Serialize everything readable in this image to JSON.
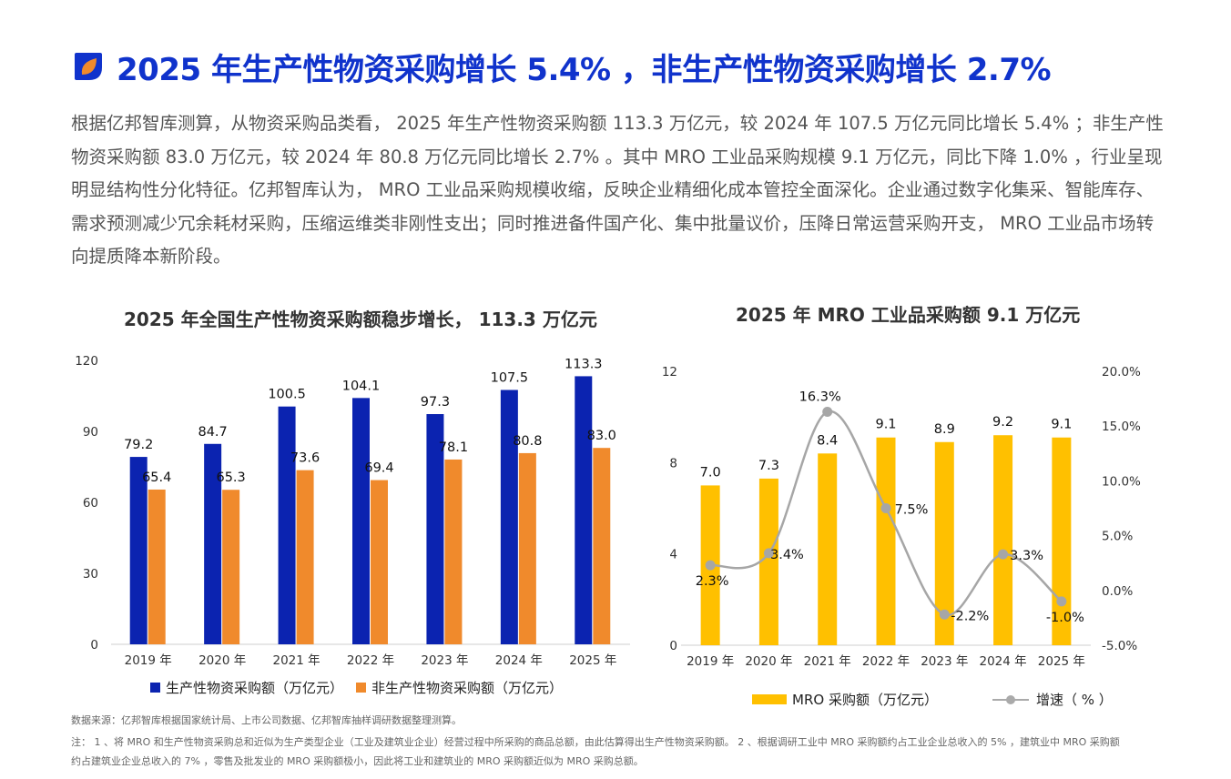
{
  "page": {
    "title": "2025 年生产性物资采购增长 5.4% ，非生产性物资采购增长 2.7%",
    "body": "根据亿邦智库测算，从物资采购品类看， 2025 年生产性物资采购额 113.3 万亿元，较 2024 年 107.5 万亿元同比增长 5.4% ；非生产性物资采购额 83.0 万亿元，较 2024 年 80.8 万亿元同比增长 2.7% 。其中 MRO 工业品采购规模 9.1 万亿元，同比下降 1.0% ，行业呈现明显结构性分化特征。亿邦智库认为， MRO 工业品采购规模收缩，反映企业精细化成本管控全面深化。企业通过数字化集采、智能库存、需求预测减少冗余耗材采购，压缩运维类非刚性支出；同时推进备件国产化、集中批量议价，压降日常运营采购开支， MRO 工业品市场转向提质降本新阶段。",
    "source": "数据来源：亿邦智库根据国家统计局、上市公司数据、亿邦智库抽样调研数据整理测算。",
    "note": "注： 1 、将 MRO 和生产性物资采购总和近似为生产类型企业（工业及建筑业企业）经营过程中所采购的商品总额，由此估算得出生产性物资采购额。 2 、根据调研工业中 MRO 采购额约占工业企业总收入的 5% ，建筑业中 MRO 采购额约占建筑业企业总收入的 7% ，零售及批发业的 MRO 采购额极小，因此将工业和建筑业的 MRO 采购额近似为 MRO 采购总额。",
    "colors": {
      "accent": "#1033cc",
      "logo_orange": "#f08a2c"
    },
    "logo_icon": "leaf-logo-icon"
  },
  "chart_data": [
    {
      "type": "bar",
      "title": "2025 年全国生产性物资采购额稳步增长， 113.3 万亿元",
      "categories": [
        "2019 年",
        "2020 年",
        "2021 年",
        "2022 年",
        "2023 年",
        "2024 年",
        "2025 年"
      ],
      "series": [
        {
          "name": "生产性物资采购额（万亿元）",
          "color": "#0b23b0",
          "values": [
            79.2,
            84.7,
            100.5,
            104.1,
            97.3,
            107.5,
            113.3
          ],
          "labels": [
            "79.2",
            "84.7",
            "100.5",
            "104.1",
            "97.3",
            "107.5",
            "113.3"
          ]
        },
        {
          "name": "非生产性物资采购额（万亿元）",
          "color": "#f08a2c",
          "values": [
            65.4,
            65.3,
            73.6,
            69.4,
            78.1,
            80.8,
            83.0
          ],
          "labels": [
            "65.4",
            "65.3",
            "73.6",
            "69.4",
            "78.1",
            "80.8",
            "83.0"
          ]
        }
      ],
      "ylim": [
        0,
        120
      ],
      "yticks": [
        "0",
        "30",
        "60",
        "90",
        "120"
      ],
      "legend": "bottom"
    },
    {
      "type": "bar",
      "title": "2025 年 MRO 工业品采购额 9.1 万亿元",
      "categories": [
        "2019 年",
        "2020 年",
        "2021 年",
        "2022 年",
        "2023 年",
        "2024 年",
        "2025 年"
      ],
      "series": [
        {
          "name": "MRO 采购额（万亿元）",
          "type": "bar",
          "color": "#ffc000",
          "values": [
            7.0,
            7.3,
            8.4,
            9.1,
            8.9,
            9.2,
            9.1
          ],
          "labels": [
            "7.0",
            "7.3",
            "8.4",
            "9.1",
            "8.9",
            "9.2",
            "9.1"
          ]
        },
        {
          "name": "增速（ % ）",
          "type": "line",
          "axis": "right",
          "color": "#a6a6a6",
          "values": [
            2.3,
            3.4,
            16.3,
            7.5,
            -2.2,
            3.3,
            -1.0
          ],
          "labels": [
            "2.3%",
            "3.4%",
            "16.3%",
            "7.5%",
            "-2.2%",
            "3.3%",
            "-1.0%"
          ]
        }
      ],
      "ylim": [
        0,
        12
      ],
      "yticks": [
        "0",
        "4",
        "8",
        "12"
      ],
      "y2lim": [
        -5,
        20
      ],
      "y2ticks": [
        "-5.0%",
        "0.0%",
        "5.0%",
        "10.0%",
        "15.0%",
        "20.0%"
      ],
      "legend": "bottom"
    }
  ]
}
